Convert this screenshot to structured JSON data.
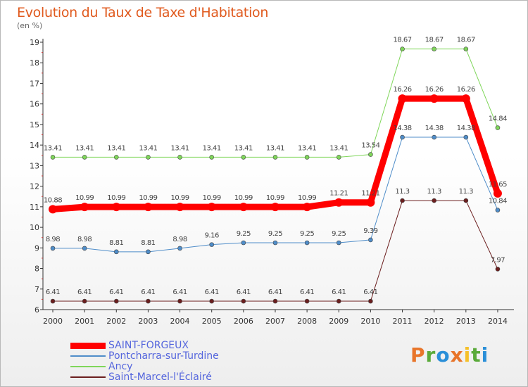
{
  "title": "Evolution du Taux de Taxe d'Habitation",
  "subtitle": "(en %)",
  "logo": {
    "text": "Proxiti",
    "colors": [
      "#e8752a",
      "#5aaa3a",
      "#2a8fd8",
      "#e8752a",
      "#f5c02a",
      "#5aaa3a",
      "#2a8fd8"
    ]
  },
  "chart_data": {
    "type": "line",
    "x": [
      "2000",
      "2001",
      "2002",
      "2003",
      "2004",
      "2005",
      "2006",
      "2007",
      "2008",
      "2009",
      "2010",
      "2011",
      "2012",
      "2013",
      "2014"
    ],
    "ylim": [
      6,
      19
    ],
    "yticks": [
      6,
      7,
      8,
      9,
      10,
      11,
      12,
      13,
      14,
      15,
      16,
      17,
      18,
      19
    ],
    "grid": false,
    "legend": "bottom-left",
    "series": [
      {
        "name": "Saint-Marcel-l'Éclairé",
        "color": "#6b1e1e",
        "width": 1,
        "values": [
          6.41,
          6.41,
          6.41,
          6.41,
          6.41,
          6.41,
          6.41,
          6.41,
          6.41,
          6.41,
          6.41,
          11.3,
          11.3,
          11.3,
          7.97
        ],
        "labels": [
          "6.41",
          "6.41",
          "6.41",
          "6.41",
          "6.41",
          "6.41",
          "6.41",
          "6.41",
          "6.41",
          "6.41",
          "6.41",
          "11.3",
          "11.3",
          "11.3",
          "7.97"
        ]
      },
      {
        "name": "Pontcharra-sur-Turdine",
        "color": "#4f8dc9",
        "width": 1,
        "values": [
          8.98,
          8.98,
          8.81,
          8.81,
          8.98,
          9.16,
          9.25,
          9.25,
          9.25,
          9.25,
          9.39,
          14.38,
          14.38,
          14.38,
          10.84
        ],
        "labels": [
          "8.98",
          "8.98",
          "8.81",
          "8.81",
          "8.98",
          "9.16",
          "9.25",
          "9.25",
          "9.25",
          "9.25",
          "9.39",
          "14.38",
          "14.38",
          "14.38",
          "10.84"
        ]
      },
      {
        "name": "Ancy",
        "color": "#7fd65a",
        "width": 1,
        "values": [
          13.41,
          13.41,
          13.41,
          13.41,
          13.41,
          13.41,
          13.41,
          13.41,
          13.41,
          13.41,
          13.54,
          18.67,
          18.67,
          18.67,
          14.84
        ],
        "labels": [
          "13.41",
          "13.41",
          "13.41",
          "13.41",
          "13.41",
          "13.41",
          "13.41",
          "13.41",
          "13.41",
          "13.41",
          "13.54",
          "18.67",
          "18.67",
          "18.67",
          "14.84"
        ]
      },
      {
        "name": "SAINT-FORGEUX",
        "color": "#ff0000",
        "width": 9,
        "values": [
          10.88,
          10.99,
          10.99,
          10.99,
          10.99,
          10.99,
          10.99,
          10.99,
          10.99,
          11.21,
          11.21,
          16.26,
          16.26,
          16.26,
          11.65
        ],
        "labels": [
          "10.88",
          "10.99",
          "10.99",
          "10.99",
          "10.99",
          "10.99",
          "10.99",
          "10.99",
          "10.99",
          "11.21",
          "11.21",
          "16.26",
          "16.26",
          "16.26",
          "11.65"
        ]
      }
    ]
  },
  "legend_order": [
    3,
    1,
    2,
    0
  ]
}
